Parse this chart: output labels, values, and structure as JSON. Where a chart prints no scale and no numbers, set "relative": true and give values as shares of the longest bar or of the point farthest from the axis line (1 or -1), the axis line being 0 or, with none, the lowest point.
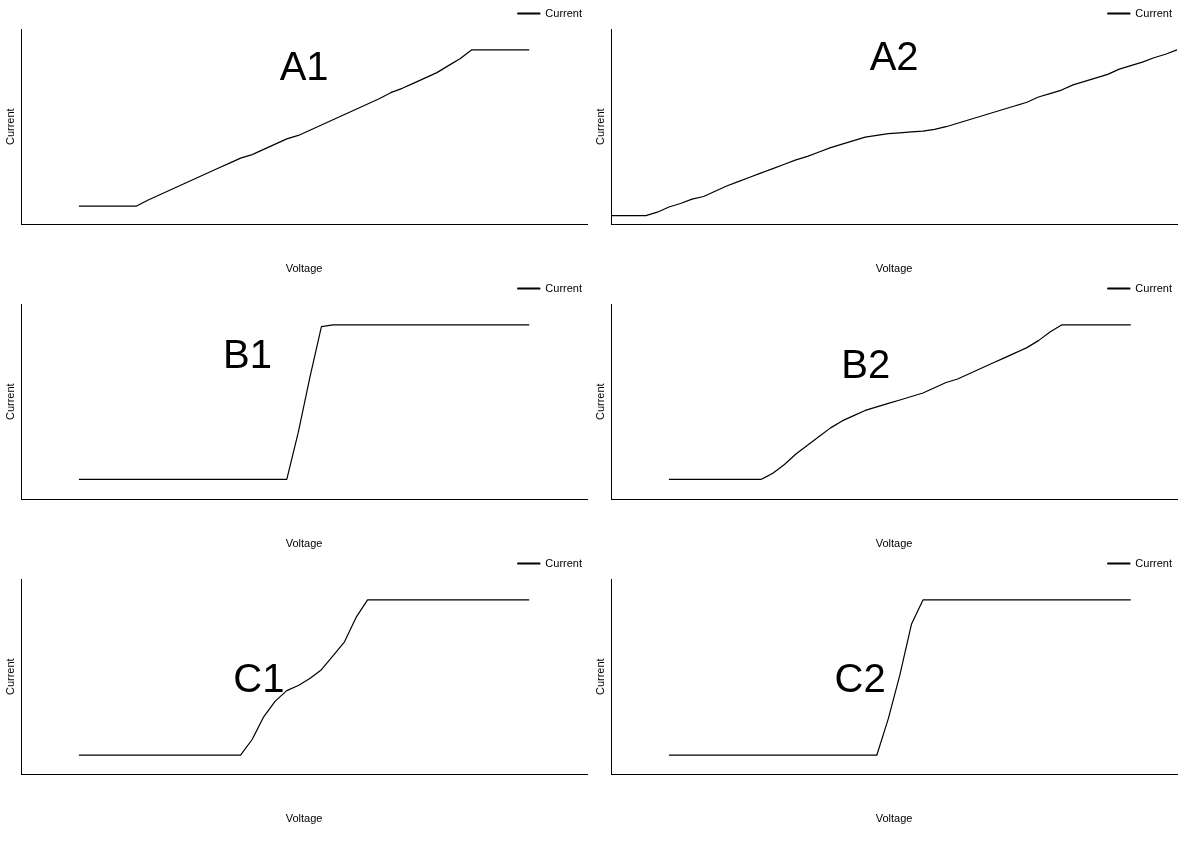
{
  "chart_data": [
    {
      "type": "line",
      "title": "A1",
      "xlabel": "Voltage",
      "ylabel": "Current",
      "relative": true,
      "legend": "top right",
      "categories": [
        null,
        null,
        null,
        null,
        null,
        null,
        null,
        null,
        null,
        null,
        null,
        null,
        null,
        null,
        null,
        null,
        null,
        null,
        null,
        null,
        null,
        null,
        null,
        null,
        null,
        null,
        null,
        null,
        null,
        null,
        null,
        null,
        null,
        null,
        null,
        null,
        null,
        null,
        null,
        null,
        null,
        null,
        null,
        null,
        null,
        null,
        null,
        null,
        null,
        null
      ],
      "series": [
        {
          "name": "Current",
          "color": "#000000",
          "values": [
            null,
            null,
            null,
            null,
            null,
            0.105,
            0.105,
            0.105,
            0.105,
            0.105,
            0.105,
            0.14,
            0.17,
            0.2,
            0.23,
            0.26,
            0.29,
            0.32,
            0.35,
            0.38,
            0.4,
            0.43,
            0.46,
            0.49,
            0.51,
            0.54,
            0.57,
            0.6,
            0.63,
            0.66,
            0.69,
            0.72,
            0.755,
            0.78,
            0.81,
            0.84,
            0.87,
            0.91,
            0.95,
            1,
            1,
            1,
            1,
            1,
            1,
            null,
            null,
            null,
            null,
            null
          ]
        }
      ]
    },
    {
      "type": "line",
      "title": "A2",
      "xlabel": "Voltage",
      "ylabel": "Current",
      "relative": true,
      "legend": "top right",
      "categories": [
        null,
        null,
        null,
        null,
        null,
        null,
        null,
        null,
        null,
        null,
        null,
        null,
        null,
        null,
        null,
        null,
        null,
        null,
        null,
        null,
        null,
        null,
        null,
        null,
        null,
        null,
        null,
        null,
        null,
        null,
        null,
        null,
        null,
        null,
        null,
        null,
        null,
        null,
        null,
        null,
        null,
        null,
        null,
        null,
        null,
        null,
        null,
        null,
        null,
        null
      ],
      "series": [
        {
          "name": "Current",
          "color": "#000000",
          "values": [
            0.05,
            0.05,
            0.05,
            0.05,
            0.07,
            0.1,
            0.12,
            0.145,
            0.16,
            0.19,
            0.22,
            0.245,
            0.27,
            0.295,
            0.32,
            0.345,
            0.37,
            0.39,
            0.415,
            0.44,
            0.46,
            0.48,
            0.5,
            0.51,
            0.52,
            0.525,
            0.53,
            0.535,
            0.545,
            0.56,
            0.58,
            0.6,
            0.62,
            0.64,
            0.66,
            0.68,
            0.7,
            0.73,
            0.75,
            0.77,
            0.8,
            0.82,
            0.84,
            0.86,
            0.89,
            0.91,
            0.93,
            0.955,
            0.975,
            1
          ]
        }
      ]
    },
    {
      "type": "line",
      "title": "B1",
      "xlabel": "Voltage",
      "ylabel": "Current",
      "relative": true,
      "legend": "top right",
      "categories": [
        null,
        null,
        null,
        null,
        null,
        null,
        null,
        null,
        null,
        null,
        null,
        null,
        null,
        null,
        null,
        null,
        null,
        null,
        null,
        null,
        null,
        null,
        null,
        null,
        null,
        null,
        null,
        null,
        null,
        null,
        null,
        null,
        null,
        null,
        null,
        null,
        null,
        null,
        null,
        null,
        null,
        null,
        null,
        null,
        null,
        null,
        null,
        null,
        null,
        null
      ],
      "series": [
        {
          "name": "Current",
          "color": "#000000",
          "values": [
            null,
            null,
            null,
            null,
            null,
            0.115,
            0.115,
            0.115,
            0.115,
            0.115,
            0.115,
            0.115,
            0.115,
            0.115,
            0.115,
            0.115,
            0.115,
            0.115,
            0.115,
            0.115,
            0.115,
            0.115,
            0.115,
            0.115,
            0.385,
            0.7,
            0.99,
            1,
            1,
            1,
            1,
            1,
            1,
            1,
            1,
            1,
            1,
            1,
            1,
            1,
            1,
            1,
            1,
            1,
            1,
            null,
            null,
            null,
            null,
            null
          ]
        }
      ]
    },
    {
      "type": "line",
      "title": "B2",
      "xlabel": "Voltage",
      "ylabel": "Current",
      "relative": true,
      "legend": "top right",
      "categories": [
        null,
        null,
        null,
        null,
        null,
        null,
        null,
        null,
        null,
        null,
        null,
        null,
        null,
        null,
        null,
        null,
        null,
        null,
        null,
        null,
        null,
        null,
        null,
        null,
        null,
        null,
        null,
        null,
        null,
        null,
        null,
        null,
        null,
        null,
        null,
        null,
        null,
        null,
        null,
        null,
        null,
        null,
        null,
        null,
        null,
        null,
        null,
        null,
        null,
        null
      ],
      "series": [
        {
          "name": "Current",
          "color": "#000000",
          "values": [
            null,
            null,
            null,
            null,
            null,
            0.115,
            0.115,
            0.115,
            0.115,
            0.115,
            0.115,
            0.115,
            0.115,
            0.115,
            0.15,
            0.2,
            0.26,
            0.31,
            0.36,
            0.41,
            0.45,
            0.48,
            0.51,
            0.53,
            0.55,
            0.57,
            0.59,
            0.61,
            0.64,
            0.67,
            0.69,
            0.72,
            0.75,
            0.78,
            0.81,
            0.84,
            0.87,
            0.91,
            0.96,
            1,
            1,
            1,
            1,
            1,
            1,
            1,
            null,
            null,
            null,
            null
          ]
        }
      ]
    },
    {
      "type": "line",
      "title": "C1",
      "xlabel": "Voltage",
      "ylabel": "Current",
      "relative": true,
      "legend": "top right",
      "categories": [
        null,
        null,
        null,
        null,
        null,
        null,
        null,
        null,
        null,
        null,
        null,
        null,
        null,
        null,
        null,
        null,
        null,
        null,
        null,
        null,
        null,
        null,
        null,
        null,
        null,
        null,
        null,
        null,
        null,
        null,
        null,
        null,
        null,
        null,
        null,
        null,
        null,
        null,
        null,
        null,
        null,
        null,
        null,
        null,
        null,
        null,
        null,
        null,
        null,
        null
      ],
      "series": [
        {
          "name": "Current",
          "color": "#000000",
          "values": [
            null,
            null,
            null,
            null,
            null,
            0.11,
            0.11,
            0.11,
            0.11,
            0.11,
            0.11,
            0.11,
            0.11,
            0.11,
            0.11,
            0.11,
            0.11,
            0.11,
            0.11,
            0.11,
            0.2,
            0.33,
            0.42,
            0.48,
            0.51,
            0.55,
            0.6,
            0.68,
            0.76,
            0.9,
            1,
            1,
            1,
            1,
            1,
            1,
            1,
            1,
            1,
            1,
            1,
            1,
            1,
            1,
            1,
            null,
            null,
            null,
            null,
            null
          ]
        }
      ]
    },
    {
      "type": "line",
      "title": "C2",
      "xlabel": "Voltage",
      "ylabel": "Current",
      "relative": true,
      "legend": "top right",
      "categories": [
        null,
        null,
        null,
        null,
        null,
        null,
        null,
        null,
        null,
        null,
        null,
        null,
        null,
        null,
        null,
        null,
        null,
        null,
        null,
        null,
        null,
        null,
        null,
        null,
        null,
        null,
        null,
        null,
        null,
        null,
        null,
        null,
        null,
        null,
        null,
        null,
        null,
        null,
        null,
        null,
        null,
        null,
        null,
        null,
        null,
        null,
        null,
        null,
        null,
        null
      ],
      "series": [
        {
          "name": "Current",
          "color": "#000000",
          "values": [
            null,
            null,
            null,
            null,
            null,
            0.11,
            0.11,
            0.11,
            0.11,
            0.11,
            0.11,
            0.11,
            0.11,
            0.11,
            0.11,
            0.11,
            0.11,
            0.11,
            0.11,
            0.11,
            0.11,
            0.11,
            0.11,
            0.11,
            0.32,
            0.57,
            0.86,
            1,
            1,
            1,
            1,
            1,
            1,
            1,
            1,
            1,
            1,
            1,
            1,
            1,
            1,
            1,
            1,
            1,
            1,
            1,
            null,
            null,
            null,
            null
          ]
        }
      ]
    }
  ]
}
